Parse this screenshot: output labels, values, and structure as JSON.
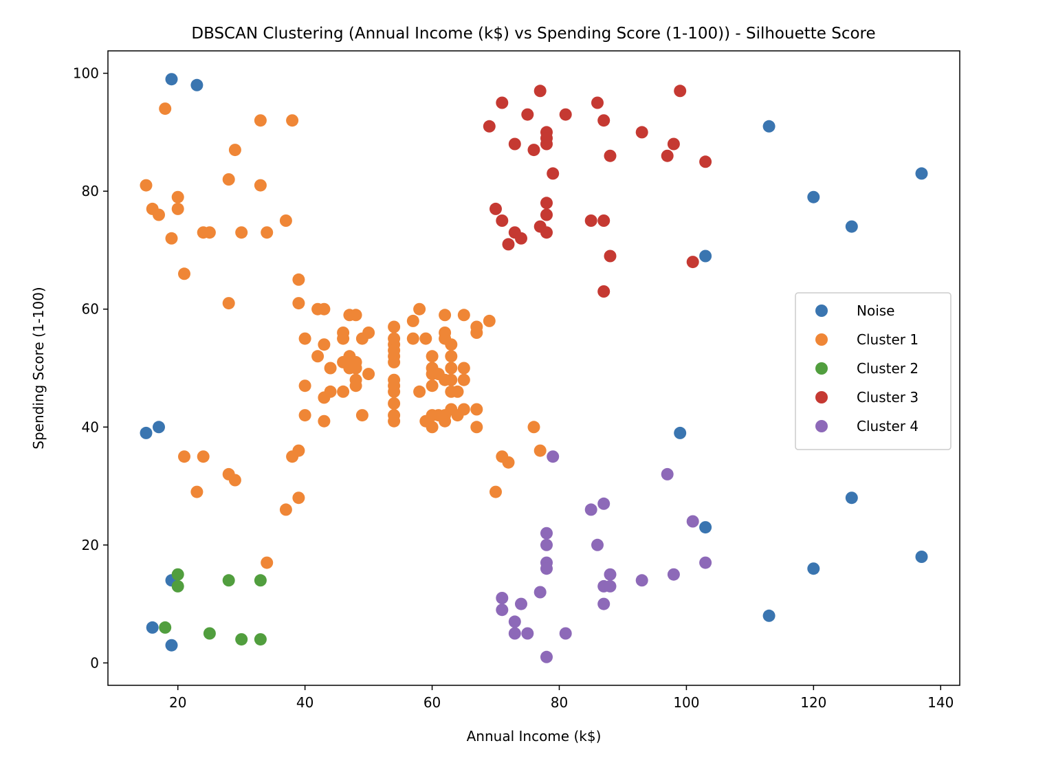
{
  "chart_data": {
    "type": "scatter",
    "title": "DBSCAN Clustering (Annual Income (k$) vs Spending Score (1-100)) - Silhouette Score",
    "xlabel": "Annual Income (k$)",
    "ylabel": "Spending Score (1-100)",
    "xlim": [
      9,
      143
    ],
    "ylim": [
      -3.8,
      103.8
    ],
    "xticks": [
      20,
      40,
      60,
      80,
      100,
      120,
      140
    ],
    "yticks": [
      0,
      20,
      40,
      60,
      80,
      100
    ],
    "grid": false,
    "legend_position": "center-right",
    "series": [
      {
        "name": "Noise",
        "color": "#3a75b0",
        "points": [
          [
            19,
            99
          ],
          [
            23,
            98
          ],
          [
            113,
            91
          ],
          [
            137,
            83
          ],
          [
            120,
            79
          ],
          [
            126,
            74
          ],
          [
            103,
            69
          ],
          [
            15,
            39
          ],
          [
            17,
            40
          ],
          [
            99,
            39
          ],
          [
            126,
            28
          ],
          [
            103,
            23
          ],
          [
            137,
            18
          ],
          [
            120,
            16
          ],
          [
            19,
            14
          ],
          [
            113,
            8
          ],
          [
            16,
            6
          ],
          [
            19,
            3
          ]
        ]
      },
      {
        "name": "Cluster 1",
        "color": "#ef8636",
        "points": [
          [
            18,
            94
          ],
          [
            33,
            92
          ],
          [
            38,
            92
          ],
          [
            29,
            87
          ],
          [
            28,
            82
          ],
          [
            15,
            81
          ],
          [
            33,
            81
          ],
          [
            20,
            79
          ],
          [
            16,
            77
          ],
          [
            20,
            77
          ],
          [
            17,
            76
          ],
          [
            37,
            75
          ],
          [
            24,
            73
          ],
          [
            25,
            73
          ],
          [
            30,
            73
          ],
          [
            34,
            73
          ],
          [
            19,
            72
          ],
          [
            21,
            66
          ],
          [
            39,
            65
          ],
          [
            28,
            61
          ],
          [
            39,
            61
          ],
          [
            42,
            60
          ],
          [
            43,
            60
          ],
          [
            58,
            60
          ],
          [
            47,
            59
          ],
          [
            48,
            59
          ],
          [
            62,
            59
          ],
          [
            65,
            59
          ],
          [
            57,
            58
          ],
          [
            69,
            58
          ],
          [
            54,
            57
          ],
          [
            67,
            57
          ],
          [
            46,
            56
          ],
          [
            50,
            56
          ],
          [
            62,
            56
          ],
          [
            67,
            56
          ],
          [
            40,
            55
          ],
          [
            46,
            55
          ],
          [
            49,
            55
          ],
          [
            54,
            55
          ],
          [
            57,
            55
          ],
          [
            59,
            55
          ],
          [
            62,
            55
          ],
          [
            43,
            54
          ],
          [
            54,
            54
          ],
          [
            63,
            54
          ],
          [
            54,
            53
          ],
          [
            42,
            52
          ],
          [
            47,
            52
          ],
          [
            54,
            52
          ],
          [
            60,
            52
          ],
          [
            63,
            52
          ],
          [
            46,
            51
          ],
          [
            48,
            51
          ],
          [
            54,
            51
          ],
          [
            44,
            50
          ],
          [
            47,
            50
          ],
          [
            48,
            50
          ],
          [
            60,
            50
          ],
          [
            63,
            50
          ],
          [
            65,
            50
          ],
          [
            50,
            49
          ],
          [
            60,
            49
          ],
          [
            61,
            49
          ],
          [
            48,
            48
          ],
          [
            54,
            48
          ],
          [
            62,
            48
          ],
          [
            63,
            48
          ],
          [
            65,
            48
          ],
          [
            40,
            47
          ],
          [
            48,
            47
          ],
          [
            54,
            47
          ],
          [
            60,
            47
          ],
          [
            44,
            46
          ],
          [
            46,
            46
          ],
          [
            54,
            46
          ],
          [
            58,
            46
          ],
          [
            63,
            46
          ],
          [
            64,
            46
          ],
          [
            43,
            45
          ],
          [
            54,
            44
          ],
          [
            63,
            43
          ],
          [
            65,
            43
          ],
          [
            67,
            43
          ],
          [
            40,
            42
          ],
          [
            49,
            42
          ],
          [
            54,
            42
          ],
          [
            60,
            42
          ],
          [
            61,
            42
          ],
          [
            62,
            42
          ],
          [
            64,
            42
          ],
          [
            43,
            41
          ],
          [
            54,
            41
          ],
          [
            59,
            41
          ],
          [
            62,
            41
          ],
          [
            60,
            40
          ],
          [
            67,
            40
          ],
          [
            76,
            40
          ],
          [
            39,
            36
          ],
          [
            77,
            36
          ],
          [
            21,
            35
          ],
          [
            24,
            35
          ],
          [
            38,
            35
          ],
          [
            71,
            35
          ],
          [
            72,
            34
          ],
          [
            28,
            32
          ],
          [
            29,
            31
          ],
          [
            23,
            29
          ],
          [
            70,
            29
          ],
          [
            39,
            28
          ],
          [
            37,
            26
          ],
          [
            34,
            17
          ]
        ]
      },
      {
        "name": "Cluster 2",
        "color": "#519e3e",
        "points": [
          [
            20,
            15
          ],
          [
            28,
            14
          ],
          [
            33,
            14
          ],
          [
            20,
            13
          ],
          [
            18,
            6
          ],
          [
            25,
            5
          ],
          [
            30,
            4
          ],
          [
            33,
            4
          ]
        ]
      },
      {
        "name": "Cluster 3",
        "color": "#c53932",
        "points": [
          [
            77,
            97
          ],
          [
            99,
            97
          ],
          [
            71,
            95
          ],
          [
            86,
            95
          ],
          [
            75,
            93
          ],
          [
            81,
            93
          ],
          [
            87,
            92
          ],
          [
            69,
            91
          ],
          [
            78,
            90
          ],
          [
            93,
            90
          ],
          [
            78,
            89
          ],
          [
            73,
            88
          ],
          [
            78,
            88
          ],
          [
            98,
            88
          ],
          [
            76,
            87
          ],
          [
            88,
            86
          ],
          [
            97,
            86
          ],
          [
            103,
            85
          ],
          [
            79,
            83
          ],
          [
            78,
            78
          ],
          [
            70,
            77
          ],
          [
            78,
            76
          ],
          [
            71,
            75
          ],
          [
            85,
            75
          ],
          [
            87,
            75
          ],
          [
            77,
            74
          ],
          [
            73,
            73
          ],
          [
            78,
            73
          ],
          [
            74,
            72
          ],
          [
            72,
            71
          ],
          [
            88,
            69
          ],
          [
            101,
            68
          ],
          [
            87,
            63
          ]
        ]
      },
      {
        "name": "Cluster 4",
        "color": "#8d69b8",
        "points": [
          [
            79,
            35
          ],
          [
            97,
            32
          ],
          [
            87,
            27
          ],
          [
            85,
            26
          ],
          [
            101,
            24
          ],
          [
            78,
            22
          ],
          [
            78,
            20
          ],
          [
            86,
            20
          ],
          [
            78,
            17
          ],
          [
            103,
            17
          ],
          [
            78,
            16
          ],
          [
            88,
            15
          ],
          [
            98,
            15
          ],
          [
            93,
            14
          ],
          [
            87,
            13
          ],
          [
            88,
            13
          ],
          [
            77,
            12
          ],
          [
            71,
            11
          ],
          [
            87,
            10
          ],
          [
            74,
            10
          ],
          [
            71,
            9
          ],
          [
            73,
            7
          ],
          [
            73,
            5
          ],
          [
            75,
            5
          ],
          [
            81,
            5
          ],
          [
            78,
            1
          ]
        ]
      }
    ]
  }
}
